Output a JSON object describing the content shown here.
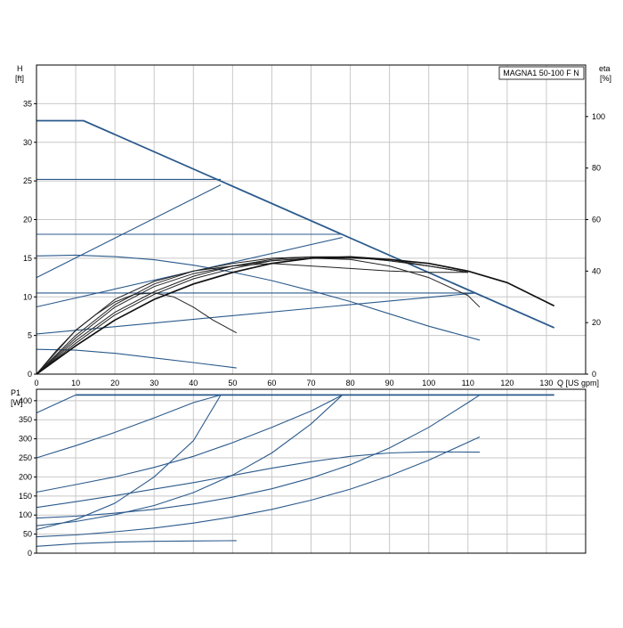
{
  "chart_data": [
    {
      "type": "line",
      "model_label": "MAGNA1 50-100 F N",
      "y_axis_name": "H",
      "y_axis_unit": "[ft]",
      "y2_axis_name": "eta",
      "y2_axis_unit": "[%]",
      "x_axis_name": "Q [US gpm]",
      "xlim": [
        0,
        140
      ],
      "ylim": [
        0,
        40
      ],
      "y2lim": [
        0,
        120
      ],
      "x_ticks": [
        "0",
        "10",
        "20",
        "30",
        "40",
        "50",
        "60",
        "70",
        "80",
        "90",
        "100",
        "110",
        "120",
        "130"
      ],
      "y_ticks": [
        "0",
        "5",
        "10",
        "15",
        "20",
        "25",
        "30",
        "35"
      ],
      "y2_ticks": [
        "0",
        "20",
        "40",
        "60",
        "80",
        "100"
      ],
      "grid": true,
      "head_curves_h": [
        {
          "x": [
            0,
            12,
            132
          ],
          "y": [
            32.8,
            32.8,
            6.0
          ]
        },
        {
          "x": [
            0,
            47
          ],
          "y": [
            25.2,
            25.2
          ]
        },
        {
          "x": [
            0,
            78
          ],
          "y": [
            18.1,
            18.1
          ]
        },
        {
          "x": [
            0,
            112
          ],
          "y": [
            10.5,
            10.5
          ]
        },
        {
          "x": [
            0,
            10,
            20,
            30,
            40,
            51
          ],
          "y": [
            3.2,
            3.1,
            2.7,
            2.1,
            1.5,
            0.8
          ]
        },
        {
          "x": [
            0,
            10,
            20,
            30,
            40,
            50,
            60,
            70,
            80,
            90,
            100,
            113
          ],
          "y": [
            15.3,
            15.4,
            15.2,
            14.8,
            14.1,
            13.2,
            12.1,
            10.8,
            9.4,
            7.8,
            6.2,
            4.4
          ]
        }
      ],
      "system_curves_h": [
        {
          "x": [
            0,
            47
          ],
          "y": [
            12.5,
            24.5
          ]
        },
        {
          "x": [
            0,
            78
          ],
          "y": [
            8.7,
            17.7
          ]
        },
        {
          "x": [
            0,
            112
          ],
          "y": [
            5.2,
            10.5
          ]
        }
      ],
      "eta_curves": [
        {
          "x": [
            0,
            5,
            10,
            15,
            20,
            25,
            30,
            35,
            40,
            45,
            51
          ],
          "y": [
            0,
            9,
            17,
            23,
            28,
            31,
            31.5,
            30,
            26,
            21,
            16
          ]
        },
        {
          "x": [
            0,
            10,
            20,
            30,
            40,
            50,
            60,
            70,
            80,
            90,
            100,
            110
          ],
          "y": [
            0,
            17,
            29,
            36,
            40,
            42,
            43,
            42,
            41,
            40,
            39.5,
            39.5
          ]
        },
        {
          "x": [
            0,
            10,
            20,
            30,
            40,
            50,
            60,
            70,
            80,
            90,
            100,
            110
          ],
          "y": [
            0,
            15,
            27,
            35,
            40,
            43,
            45,
            45.5,
            45.5,
            44,
            42,
            39.5
          ]
        },
        {
          "x": [
            0,
            10,
            20,
            30,
            40,
            50,
            60,
            70,
            80,
            90,
            100,
            110
          ],
          "y": [
            0,
            14,
            26,
            34,
            39,
            42,
            44,
            45,
            45,
            44.5,
            42,
            39.5
          ]
        },
        {
          "x": [
            0,
            10,
            20,
            30,
            40,
            50,
            60,
            70,
            80,
            90,
            100,
            110
          ],
          "y": [
            0,
            13,
            24,
            32,
            38,
            42,
            44.5,
            45.5,
            45.5,
            44,
            42,
            39.5
          ]
        },
        {
          "x": [
            0,
            10,
            20,
            30,
            40,
            50,
            60,
            70,
            80,
            90,
            100,
            110,
            113
          ],
          "y": [
            0,
            12,
            23,
            31,
            37,
            41,
            44,
            45,
            44.5,
            42,
            37.5,
            30.5,
            26
          ]
        }
      ],
      "eta_curve_main": {
        "x": [
          0,
          10,
          20,
          30,
          40,
          50,
          60,
          70,
          80,
          90,
          100,
          110,
          120,
          132
        ],
        "y": [
          0,
          11,
          21,
          29,
          35,
          39.5,
          43,
          45,
          45.5,
          44.5,
          43,
          40,
          35.5,
          26.5
        ]
      }
    },
    {
      "type": "line",
      "y_axis_name": "P1",
      "y_axis_unit": "[W]",
      "xlim": [
        0,
        140
      ],
      "ylim": [
        0,
        430
      ],
      "y_ticks": [
        "0",
        "50",
        "100",
        "150",
        "200",
        "250",
        "300",
        "350",
        "400"
      ],
      "grid": true,
      "power_curves": [
        {
          "x": [
            0,
            10,
            20,
            30,
            40,
            51
          ],
          "y": [
            18,
            25,
            29,
            31,
            32,
            33
          ]
        },
        {
          "x": [
            0,
            10,
            20,
            30,
            40,
            50,
            60,
            70,
            80,
            90,
            100,
            113
          ],
          "y": [
            43,
            48,
            56,
            66,
            79,
            95,
            115,
            139,
            168,
            203,
            244,
            305
          ]
        },
        {
          "x": [
            0,
            10,
            20,
            30,
            40,
            50,
            60,
            70,
            80,
            90,
            100,
            110,
            113
          ],
          "y": [
            92,
            97,
            105,
            115,
            129,
            147,
            169,
            197,
            232,
            276,
            330,
            395,
            415
          ]
        },
        {
          "x": [
            0,
            10,
            20,
            30,
            40,
            50,
            60,
            70,
            78
          ],
          "y": [
            72,
            83,
            101,
            125,
            159,
            205,
            263,
            339,
            415
          ]
        },
        {
          "x": [
            0,
            10,
            20,
            30,
            40,
            47
          ],
          "y": [
            62,
            88,
            131,
            200,
            295,
            415
          ]
        },
        {
          "x": [
            0,
            10,
            20,
            30,
            40,
            50,
            60,
            70,
            80,
            90,
            100,
            113
          ],
          "y": [
            120,
            135,
            151,
            168,
            185,
            204,
            223,
            240,
            254,
            263,
            266,
            265
          ]
        },
        {
          "x": [
            0,
            10,
            20,
            30,
            40,
            50,
            60,
            70,
            78
          ],
          "y": [
            160,
            180,
            200,
            225,
            254,
            290,
            330,
            373,
            415
          ]
        },
        {
          "x": [
            0,
            10,
            20,
            30,
            40,
            47
          ],
          "y": [
            250,
            282,
            317,
            355,
            395,
            415
          ]
        },
        {
          "x": [
            0,
            10
          ],
          "y": [
            368,
            415
          ]
        },
        {
          "x": [
            10,
            132
          ],
          "y": [
            415,
            415
          ]
        }
      ]
    }
  ]
}
